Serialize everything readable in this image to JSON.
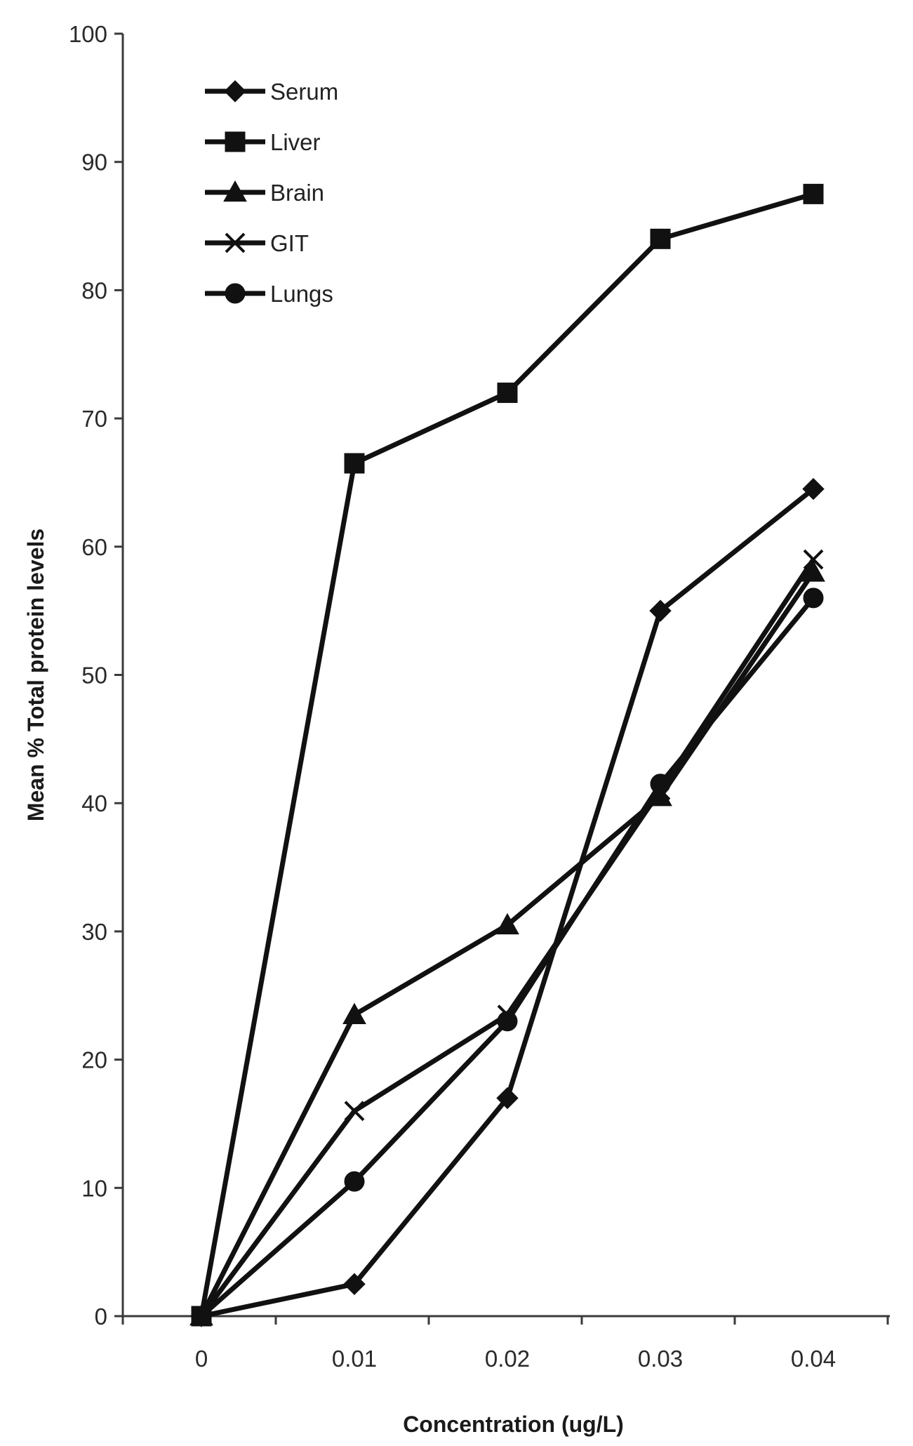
{
  "chart_data": {
    "type": "line",
    "title": "",
    "xlabel": "Concentration (ug/L)",
    "ylabel": "Mean % Total protein levels",
    "categories": [
      "0",
      "0.01",
      "0.02",
      "0.03",
      "0.04"
    ],
    "ylim": [
      0,
      100
    ],
    "yticks": [
      "0",
      "10",
      "20",
      "30",
      "40",
      "50",
      "60",
      "70",
      "80",
      "90",
      "100"
    ],
    "grid": false,
    "legend_position": "top-left",
    "series": [
      {
        "name": "Serum",
        "marker": "diamond",
        "values": [
          0,
          2.5,
          17,
          55,
          64.5
        ]
      },
      {
        "name": "Liver",
        "marker": "square",
        "values": [
          0,
          66.5,
          72,
          84,
          87.5
        ]
      },
      {
        "name": "Brain",
        "marker": "triangle",
        "values": [
          0,
          23.5,
          30.5,
          40.5,
          58
        ]
      },
      {
        "name": "GIT",
        "marker": "x",
        "values": [
          0,
          16,
          23.5,
          41,
          59
        ]
      },
      {
        "name": "Lungs",
        "marker": "circle",
        "values": [
          0,
          10.5,
          23,
          41.5,
          56
        ]
      }
    ],
    "line_color": "#111111"
  }
}
